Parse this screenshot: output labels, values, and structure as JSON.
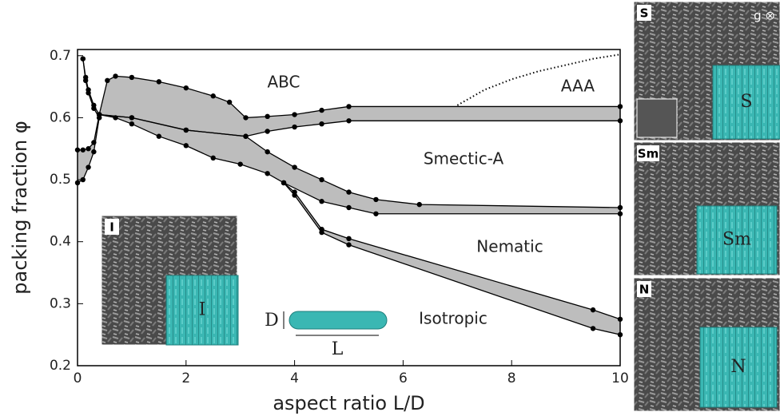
{
  "chart_data": {
    "type": "phase-diagram",
    "xlabel": "aspect ratio L/D",
    "ylabel": "packing fraction φ",
    "xlim": [
      0,
      10
    ],
    "ylim": [
      0.2,
      0.71
    ],
    "xticks": [
      0,
      2,
      4,
      6,
      8,
      10
    ],
    "yticks": [
      0.2,
      0.3,
      0.4,
      0.5,
      0.6,
      0.7
    ],
    "fill_color": "#bdbdbd",
    "line_color": "#000000",
    "bands": [
      {
        "upper": {
          "x": [
            0,
            0.1,
            0.2,
            0.3,
            0.4
          ],
          "values": [
            0.548,
            0.548,
            0.55,
            0.56,
            0.605
          ]
        },
        "lower": {
          "x": [
            0,
            0.1,
            0.2,
            0.3,
            0.4
          ],
          "values": [
            0.495,
            0.5,
            0.52,
            0.545,
            0.6
          ]
        }
      },
      {
        "upper": {
          "x": [
            0.1,
            0.15,
            0.2,
            0.3,
            0.4
          ],
          "values": [
            0.695,
            0.665,
            0.645,
            0.62,
            0.605
          ]
        },
        "lower": {
          "x": [
            0.1,
            0.15,
            0.2,
            0.3,
            0.4
          ],
          "values": [
            0.695,
            0.66,
            0.64,
            0.615,
            0.6
          ]
        }
      },
      {
        "upper": {
          "x": [
            0.4,
            0.55,
            0.7,
            1,
            1.5,
            2,
            2.5,
            2.8,
            3.1,
            3.5,
            4,
            4.5,
            5,
            10
          ],
          "values": [
            0.605,
            0.66,
            0.667,
            0.665,
            0.658,
            0.648,
            0.635,
            0.625,
            0.6,
            0.602,
            0.605,
            0.612,
            0.618,
            0.618
          ]
        },
        "lower": {
          "x": [
            0.4,
            1,
            2,
            3.1,
            3.5,
            4,
            4.5,
            5,
            10
          ],
          "values": [
            0.605,
            0.6,
            0.58,
            0.57,
            0.578,
            0.585,
            0.59,
            0.595,
            0.595
          ]
        }
      },
      {
        "upper": {
          "x": [
            0.4,
            1,
            2,
            3.1,
            3.5,
            4,
            4.5,
            5,
            5.5,
            6.3,
            10
          ],
          "values": [
            0.605,
            0.6,
            0.58,
            0.57,
            0.545,
            0.52,
            0.5,
            0.48,
            0.468,
            0.46,
            0.455
          ]
        },
        "lower": {
          "x": [
            0.4,
            0.7,
            1,
            1.5,
            2,
            2.5,
            3,
            3.5,
            3.8,
            4.5,
            5,
            5.5,
            10
          ],
          "values": [
            0.605,
            0.6,
            0.59,
            0.57,
            0.555,
            0.535,
            0.525,
            0.51,
            0.495,
            0.465,
            0.455,
            0.445,
            0.445
          ]
        }
      },
      {
        "upper": {
          "x": [
            3.8,
            4,
            4.5,
            5,
            9.5,
            10
          ],
          "values": [
            0.495,
            0.48,
            0.42,
            0.405,
            0.29,
            0.275
          ]
        },
        "lower": {
          "x": [
            3.8,
            4,
            4.5,
            5,
            9.5,
            10
          ],
          "values": [
            0.495,
            0.475,
            0.415,
            0.395,
            0.26,
            0.25
          ]
        }
      }
    ],
    "dotted": {
      "x": [
        7,
        7.5,
        8,
        8.5,
        9,
        9.5,
        10
      ],
      "values": [
        0.62,
        0.645,
        0.662,
        0.675,
        0.685,
        0.695,
        0.702
      ]
    },
    "regions": [
      "ABC",
      "AAA",
      "Smectic-A",
      "Nematic",
      "Isotropic"
    ],
    "rod": {
      "diameter": "D",
      "length": "L",
      "color": "#3ab7b3"
    },
    "snapshots": [
      {
        "tag": "I",
        "label": "I"
      },
      {
        "tag": "S",
        "label": "S",
        "note": "g ⊗"
      },
      {
        "tag": "Sm",
        "label": "Sm"
      },
      {
        "tag": "N",
        "label": "N"
      }
    ]
  }
}
